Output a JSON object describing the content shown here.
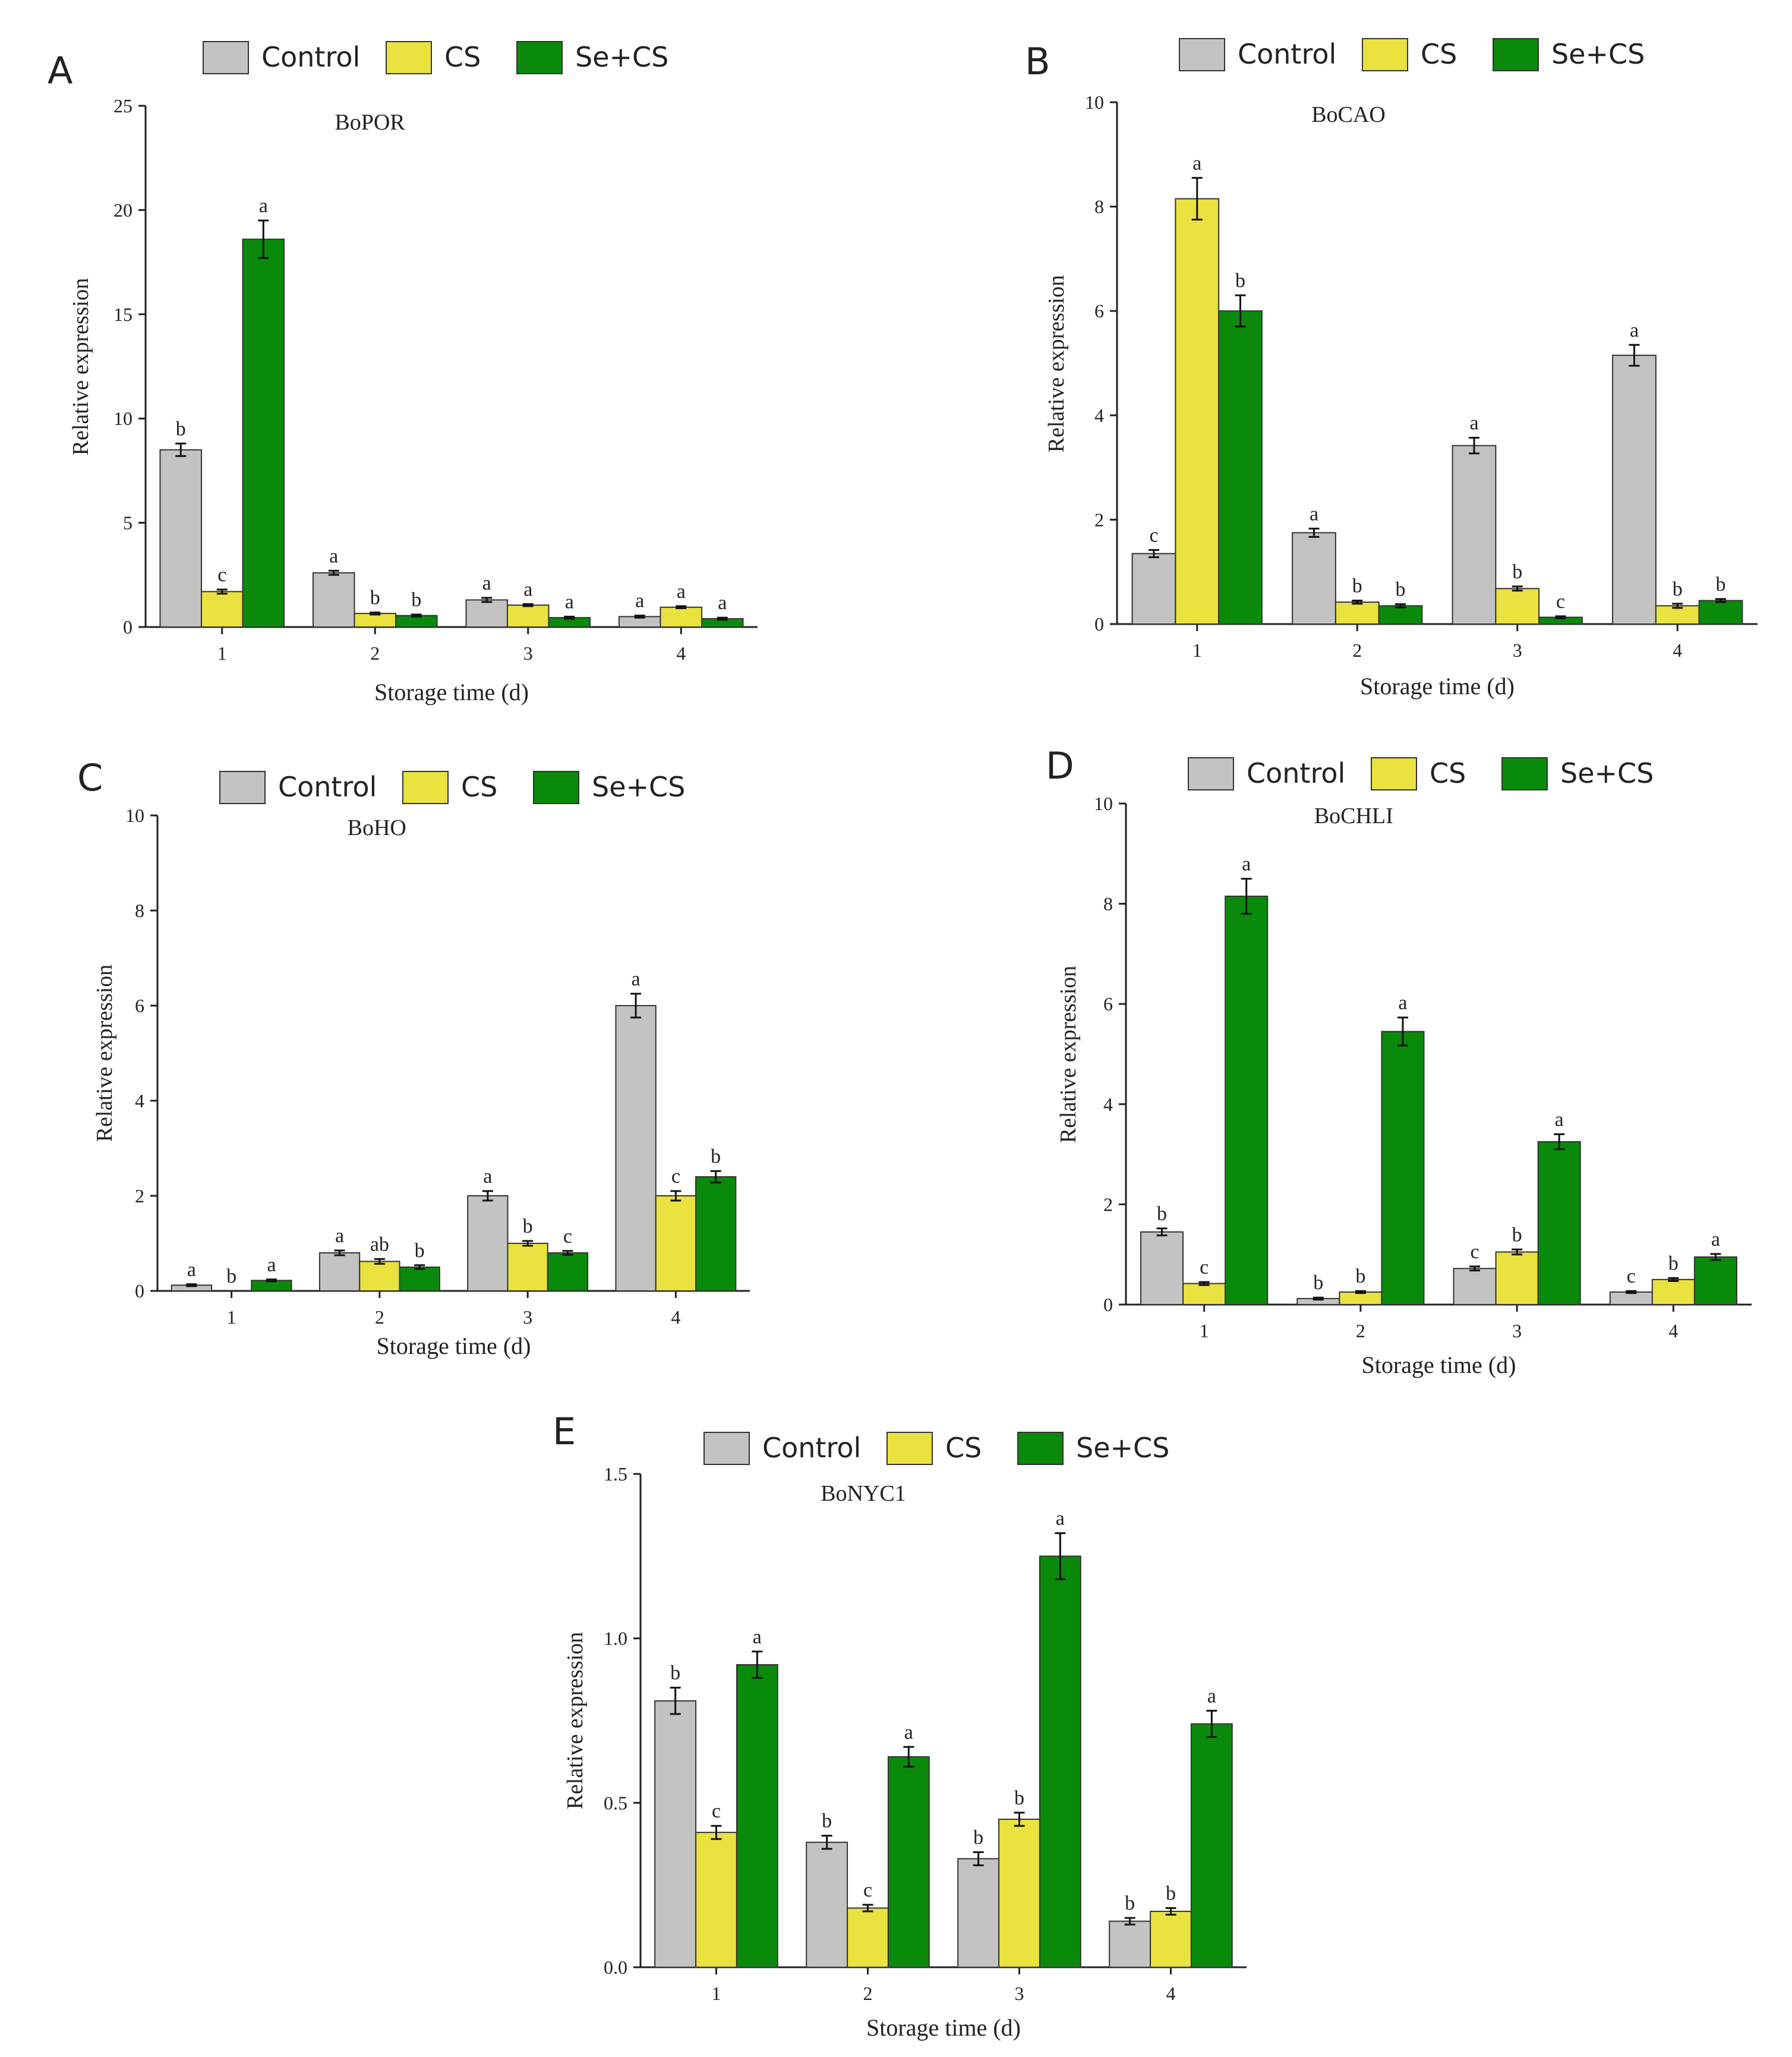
{
  "figure": {
    "legend_labels": [
      "Control",
      "CS",
      "Se+CS"
    ],
    "series_colors": {
      "Control": "#c3c3c3",
      "CS": "#e9e23f",
      "Se+CS": "#0a8a0a"
    },
    "bar_stroke": "#333333"
  },
  "chart_data": [
    {
      "panel": "A",
      "type": "bar",
      "title": "BoPOR",
      "xlabel": "Storage time (d)",
      "ylabel": "Relative expression",
      "categories": [
        "1",
        "2",
        "3",
        "4"
      ],
      "ylim": [
        0,
        25
      ],
      "yticks": [
        0,
        5,
        10,
        15,
        20,
        25
      ],
      "ytick_labels": [
        "0",
        "5",
        "10",
        "15",
        "20",
        "25"
      ],
      "series": [
        {
          "name": "Control",
          "values": [
            8.5,
            2.6,
            1.3,
            0.5
          ],
          "errors": [
            0.3,
            0.1,
            0.1,
            0.05
          ],
          "labels": [
            "b",
            "a",
            "a",
            "a"
          ]
        },
        {
          "name": "CS",
          "values": [
            1.7,
            0.65,
            1.05,
            0.95
          ],
          "errors": [
            0.1,
            0.05,
            0.05,
            0.05
          ],
          "labels": [
            "c",
            "b",
            "a",
            "a"
          ]
        },
        {
          "name": "Se+CS",
          "values": [
            18.6,
            0.55,
            0.45,
            0.4
          ],
          "errors": [
            0.9,
            0.05,
            0.05,
            0.05
          ],
          "labels": [
            "a",
            "b",
            "a",
            "a"
          ]
        }
      ]
    },
    {
      "panel": "B",
      "type": "bar",
      "title": "BoCAO",
      "xlabel": "Storage time (d)",
      "ylabel": "Relative expression",
      "categories": [
        "1",
        "2",
        "3",
        "4"
      ],
      "ylim": [
        0,
        10
      ],
      "yticks": [
        0,
        2,
        4,
        6,
        8,
        10
      ],
      "ytick_labels": [
        "0",
        "2",
        "4",
        "6",
        "8",
        "10"
      ],
      "series": [
        {
          "name": "Control",
          "values": [
            1.35,
            1.75,
            3.42,
            5.15
          ],
          "errors": [
            0.07,
            0.08,
            0.15,
            0.2
          ],
          "labels": [
            "c",
            "a",
            "a",
            "a"
          ]
        },
        {
          "name": "CS",
          "values": [
            8.15,
            0.42,
            0.68,
            0.35
          ],
          "errors": [
            0.4,
            0.03,
            0.04,
            0.04
          ],
          "labels": [
            "a",
            "b",
            "b",
            "b"
          ]
        },
        {
          "name": "Se+CS",
          "values": [
            6.0,
            0.35,
            0.13,
            0.45
          ],
          "errors": [
            0.3,
            0.03,
            0.02,
            0.03
          ],
          "labels": [
            "b",
            "b",
            "c",
            "b"
          ]
        }
      ]
    },
    {
      "panel": "C",
      "type": "bar",
      "title": "BoHO",
      "xlabel": "Storage time (d)",
      "ylabel": "Relative expression",
      "categories": [
        "1",
        "2",
        "3",
        "4"
      ],
      "ylim": [
        0,
        10
      ],
      "yticks": [
        0,
        2,
        4,
        6,
        8,
        10
      ],
      "ytick_labels": [
        "0",
        "2",
        "4",
        "6",
        "8",
        "10"
      ],
      "series": [
        {
          "name": "Control",
          "values": [
            0.12,
            0.8,
            2.0,
            6.0
          ],
          "errors": [
            0.02,
            0.05,
            0.1,
            0.25
          ],
          "labels": [
            "a",
            "a",
            "a",
            "a"
          ]
        },
        {
          "name": "CS",
          "values": [
            0.0,
            0.62,
            1.0,
            2.0
          ],
          "errors": [
            0.0,
            0.05,
            0.05,
            0.1
          ],
          "labels": [
            "b",
            "ab",
            "b",
            "c"
          ]
        },
        {
          "name": "Se+CS",
          "values": [
            0.22,
            0.5,
            0.8,
            2.4
          ],
          "errors": [
            0.02,
            0.04,
            0.04,
            0.12
          ],
          "labels": [
            "a",
            "b",
            "c",
            "b"
          ]
        }
      ]
    },
    {
      "panel": "D",
      "type": "bar",
      "title": "BoCHLI",
      "xlabel": "Storage time (d)",
      "ylabel": "Relative expression",
      "categories": [
        "1",
        "2",
        "3",
        "4"
      ],
      "ylim": [
        0,
        10
      ],
      "yticks": [
        0,
        2,
        4,
        6,
        8,
        10
      ],
      "ytick_labels": [
        "0",
        "2",
        "4",
        "6",
        "8",
        "10"
      ],
      "series": [
        {
          "name": "Control",
          "values": [
            1.45,
            0.12,
            0.72,
            0.25
          ],
          "errors": [
            0.07,
            0.02,
            0.04,
            0.02
          ],
          "labels": [
            "b",
            "b",
            "c",
            "c"
          ]
        },
        {
          "name": "CS",
          "values": [
            0.42,
            0.25,
            1.05,
            0.5
          ],
          "errors": [
            0.03,
            0.02,
            0.05,
            0.03
          ],
          "labels": [
            "c",
            "b",
            "b",
            "b"
          ]
        },
        {
          "name": "Se+CS",
          "values": [
            8.15,
            5.45,
            3.25,
            0.95
          ],
          "errors": [
            0.35,
            0.28,
            0.15,
            0.06
          ],
          "labels": [
            "a",
            "a",
            "a",
            "a"
          ]
        }
      ]
    },
    {
      "panel": "E",
      "type": "bar",
      "title": "BoNYC1",
      "xlabel": "Storage time (d)",
      "ylabel": "Relative expression",
      "categories": [
        "1",
        "2",
        "3",
        "4"
      ],
      "ylim": [
        0,
        1.5
      ],
      "yticks": [
        0,
        0.5,
        1.0,
        1.5
      ],
      "ytick_labels": [
        "0.0",
        "0.5",
        "1.0",
        "1.5"
      ],
      "series": [
        {
          "name": "Control",
          "values": [
            0.81,
            0.38,
            0.33,
            0.14
          ],
          "errors": [
            0.04,
            0.02,
            0.02,
            0.01
          ],
          "labels": [
            "b",
            "b",
            "b",
            "b"
          ]
        },
        {
          "name": "CS",
          "values": [
            0.41,
            0.18,
            0.45,
            0.17
          ],
          "errors": [
            0.02,
            0.01,
            0.02,
            0.01
          ],
          "labels": [
            "c",
            "c",
            "b",
            "b"
          ]
        },
        {
          "name": "Se+CS",
          "values": [
            0.92,
            0.64,
            1.25,
            0.74
          ],
          "errors": [
            0.04,
            0.03,
            0.07,
            0.04
          ],
          "labels": [
            "a",
            "a",
            "a",
            "a"
          ]
        }
      ]
    }
  ]
}
